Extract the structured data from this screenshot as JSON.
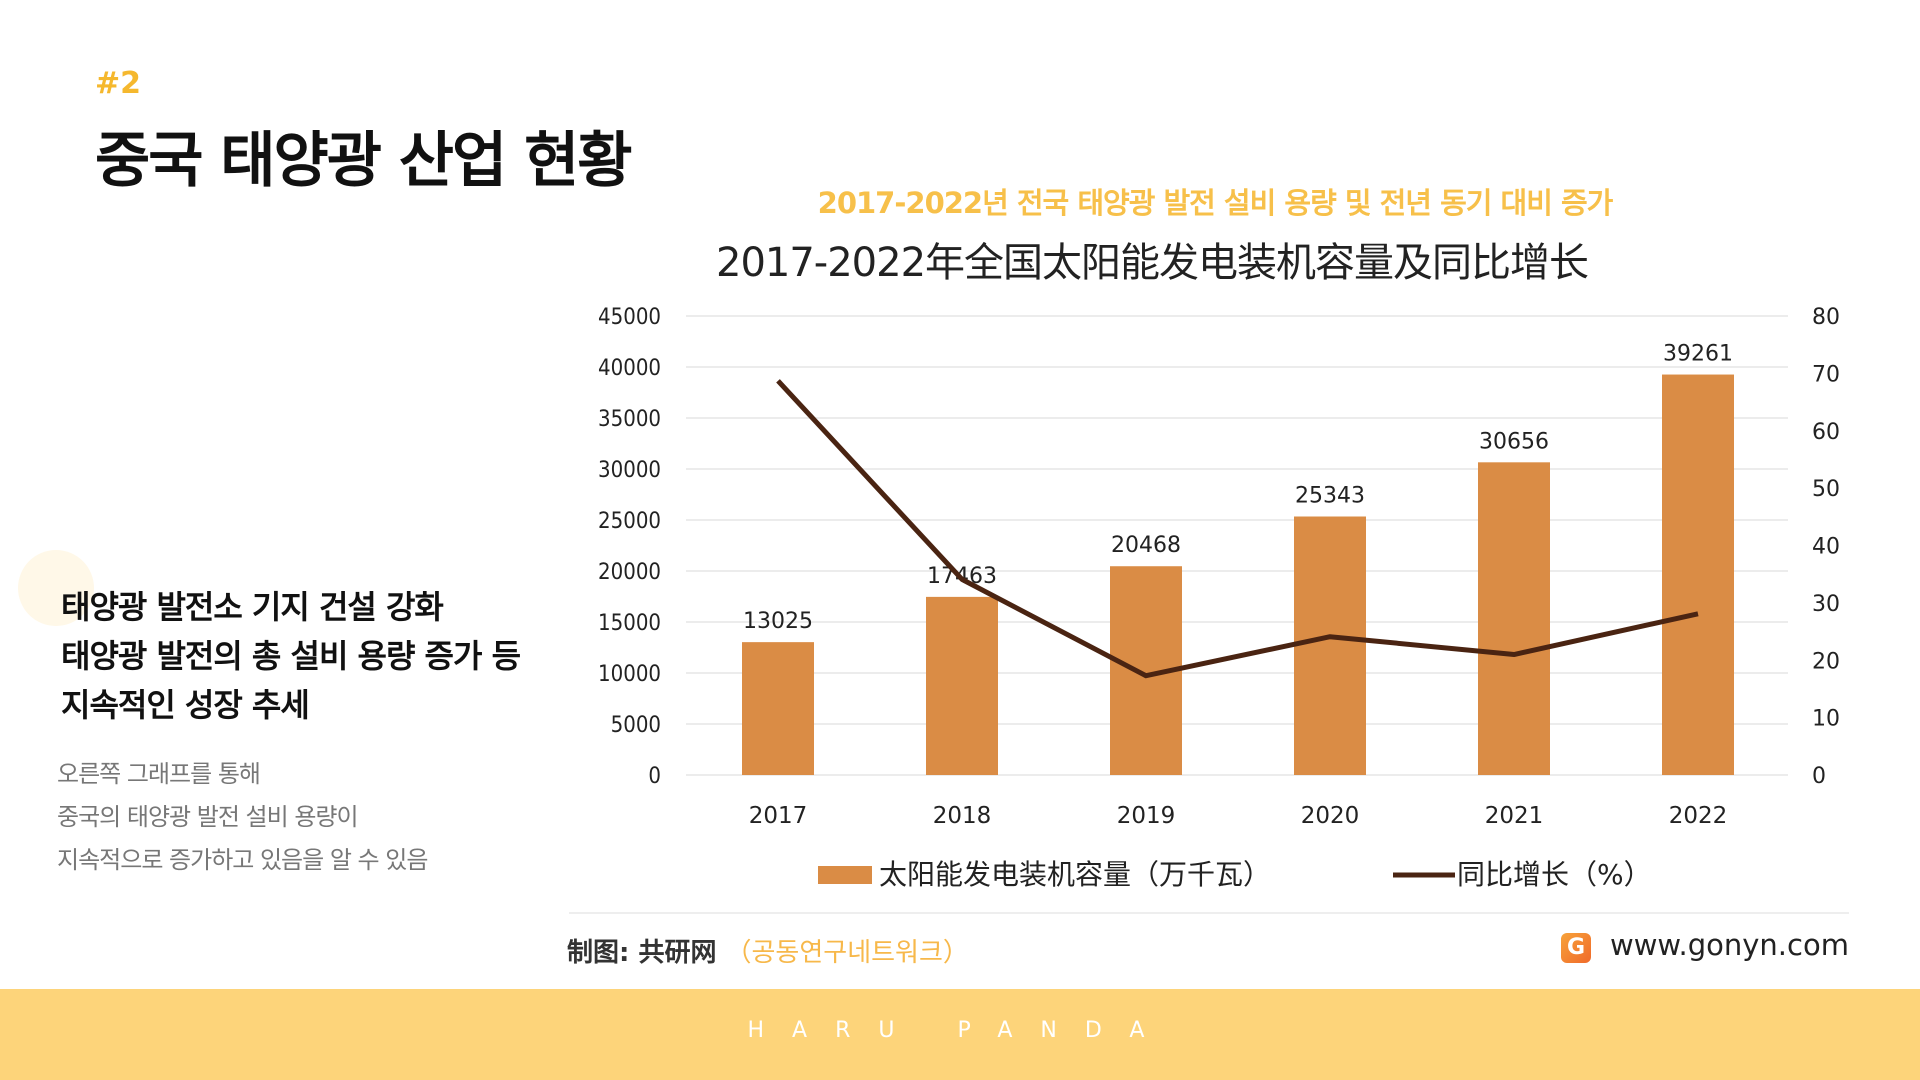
{
  "slide": {
    "number": "#2",
    "title": "중국 태양광 산업 현황"
  },
  "summary": {
    "headline": [
      "태양광 발전소 기지 건설 강화",
      " 태양광 발전의 총 설비 용량  증가 등",
      "지속적인 성장 추세"
    ],
    "body": [
      "오른쪽 그래프를 통해",
      "중국의 태양광 발전 설비 용량이",
      "지속적으로 증가하고 있음을 알 수 있음"
    ]
  },
  "chart_subtitle_ko": "2017-2022년 전국 태양광 발전 설비 용량 및 전년 동기 대비 증가",
  "chart_data": {
    "type": "bar+line",
    "title": "2017-2022年全国太阳能发电装机容量及同比增长",
    "categories": [
      "2017",
      "2018",
      "2019",
      "2020",
      "2021",
      "2022"
    ],
    "series": [
      {
        "name": "太阳能发电装机容量（万千瓦）",
        "type": "bar",
        "axis": "left",
        "values": [
          13025,
          17463,
          20468,
          25343,
          30656,
          39261
        ],
        "labels": [
          "13025",
          "17463",
          "20468",
          "25343",
          "30656",
          "39261"
        ],
        "color": "#DA8C45"
      },
      {
        "name": "同比增长（%）",
        "type": "line",
        "axis": "right",
        "values": [
          68.7,
          34.1,
          17.3,
          24.1,
          21.0,
          28.1
        ],
        "color": "#4A2412"
      }
    ],
    "y_left": {
      "range": [
        0,
        45000
      ],
      "ticks": [
        "0",
        "5000",
        "10000",
        "15000",
        "20000",
        "25000",
        "30000",
        "35000",
        "40000",
        "45000"
      ]
    },
    "y_right": {
      "range": [
        0,
        80
      ],
      "ticks": [
        "0",
        "10",
        "20",
        "30",
        "40",
        "50",
        "60",
        "70",
        "80"
      ]
    },
    "grid": true,
    "legend": "bottom"
  },
  "footer": {
    "credit": "制图: 共研网",
    "credit_ko": "（공동연구네트워크）",
    "logo": "G",
    "site": "www.gonyn.com"
  },
  "brand": "HARU  PANDA"
}
